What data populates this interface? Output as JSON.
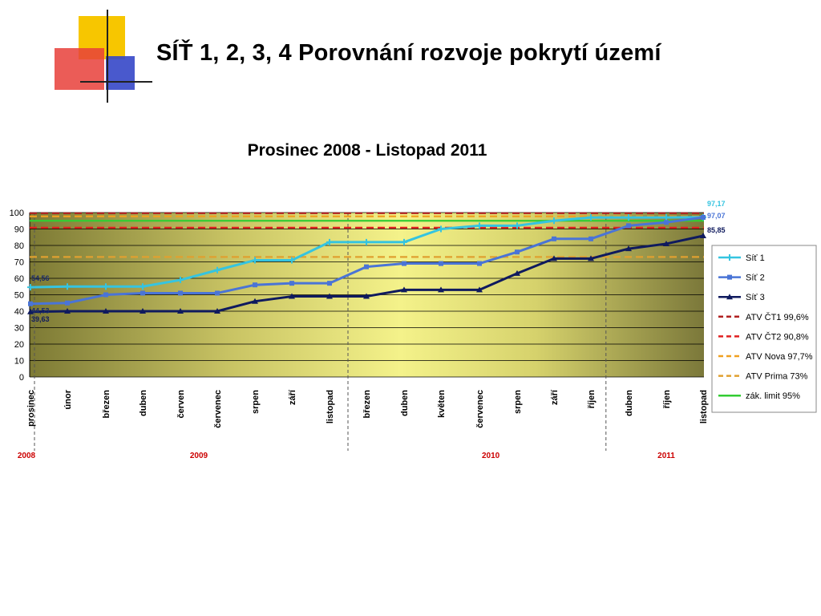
{
  "slide": {
    "title": "SÍŤ 1, 2, 3, 4  Porovnání rozvoje pokrytí území",
    "subtitle": "Prosinec 2008 - Listopad 2011"
  },
  "colors": {
    "logo_yellow": "#f7c600",
    "logo_red": "#e8403a",
    "logo_blue": "#3547c8",
    "sit1": "#35c4e0",
    "sit2": "#4a74d6",
    "sit3": "#0f1a5e",
    "ct1": "#b02020",
    "ct2": "#e02020",
    "nova": "#f0a020",
    "prima": "#e0a030",
    "limit": "#33cc33",
    "year_label": "#cc0000"
  },
  "chart_data": {
    "type": "line",
    "ylim": [
      0,
      100
    ],
    "yticks": [
      0,
      10,
      20,
      30,
      40,
      50,
      60,
      70,
      80,
      90,
      100
    ],
    "categories": [
      "prosinec",
      "únor",
      "březen",
      "duben",
      "červen",
      "červenec",
      "srpen",
      "září",
      "listopad",
      "březen",
      "duben",
      "květen",
      "červenec",
      "srpen",
      "září",
      "říjen",
      "duben",
      "říjen",
      "listopad"
    ],
    "year_labels": [
      {
        "text": "2008",
        "at_category": 0
      },
      {
        "text": "2009",
        "at_category": 4.5
      },
      {
        "text": "2010",
        "at_category": 12.3
      },
      {
        "text": "2011",
        "at_category": 17
      }
    ],
    "year_separators_after_category": [
      0,
      8.5,
      15.4
    ],
    "series": [
      {
        "name": "Síť 1",
        "color": "#35c4e0",
        "marker": "plus",
        "values": [
          54.56,
          55,
          55,
          55,
          59,
          65,
          71,
          71,
          82,
          82,
          82,
          90,
          92,
          92,
          95,
          97,
          97,
          97,
          97.17
        ],
        "start_label": "54,56",
        "end_label": "97,17"
      },
      {
        "name": "Síť 2",
        "color": "#4a74d6",
        "marker": "square",
        "values": [
          44.53,
          45,
          50,
          51,
          51,
          51,
          56,
          57,
          57,
          67,
          69,
          69,
          69,
          76,
          84,
          84,
          92,
          94,
          97.07
        ],
        "start_label": "44,53",
        "end_label": "97,07"
      },
      {
        "name": "Síť 3",
        "color": "#0f1a5e",
        "marker": "triangle",
        "values": [
          39.63,
          40,
          40,
          40,
          40,
          40,
          46,
          49,
          49,
          49,
          53,
          53,
          53,
          63,
          72,
          72,
          78,
          81,
          85.85
        ],
        "start_label": "39,63",
        "end_label": "85,85"
      }
    ],
    "reference_lines": [
      {
        "name": "ATV ČT1 99,6%",
        "value": 99.6,
        "color": "#b02020",
        "style": "dashed"
      },
      {
        "name": "ATV ČT2 90,8%",
        "value": 90.8,
        "color": "#e02020",
        "style": "dashed"
      },
      {
        "name": "ATV Nova 97,7%",
        "value": 97.7,
        "color": "#f0a020",
        "style": "dashed"
      },
      {
        "name": "ATV  Prima 73%",
        "value": 73,
        "color": "#e0a030",
        "style": "dashed"
      },
      {
        "name": "zák. limit 95%",
        "value": 95,
        "color": "#33cc33",
        "style": "solid"
      }
    ],
    "legend_position": "right",
    "grid": true
  }
}
